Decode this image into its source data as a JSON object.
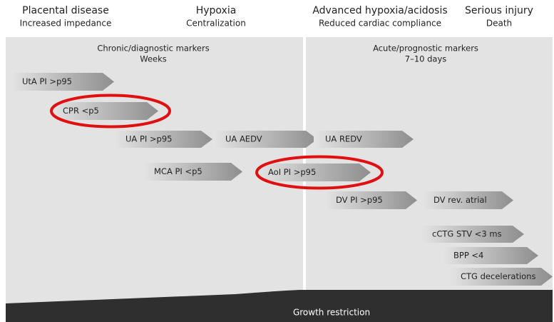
{
  "stages": [
    {
      "title": "Placental disease",
      "subtitle": "Increased impedance"
    },
    {
      "title": "Hypoxia",
      "subtitle": "Centralization"
    },
    {
      "title": "Advanced hypoxia/acidosis",
      "subtitle": "Reduced cardiac compliance"
    },
    {
      "title": "Serious injury",
      "subtitle": "Death"
    }
  ],
  "panels": [
    {
      "title": "Chronic/diagnostic markers",
      "subtitle": "Weeks"
    },
    {
      "title": "Acute/prognostic markers",
      "subtitle": "7–10 days"
    }
  ],
  "markers": [
    {
      "label": "UtA PI >p95"
    },
    {
      "label": "CPR <p5"
    },
    {
      "label": "UA PI >p95"
    },
    {
      "label": "UA AEDV"
    },
    {
      "label": "UA REDV"
    },
    {
      "label": "MCA PI <p5"
    },
    {
      "label": "AoI PI >p95"
    },
    {
      "label": "DV PI >p95"
    },
    {
      "label": "DV rev. atrial"
    },
    {
      "label": "cCTG STV <3 ms"
    },
    {
      "label": "BPP <4"
    },
    {
      "label": "CTG decelerations"
    }
  ],
  "footer": "Growth restriction"
}
